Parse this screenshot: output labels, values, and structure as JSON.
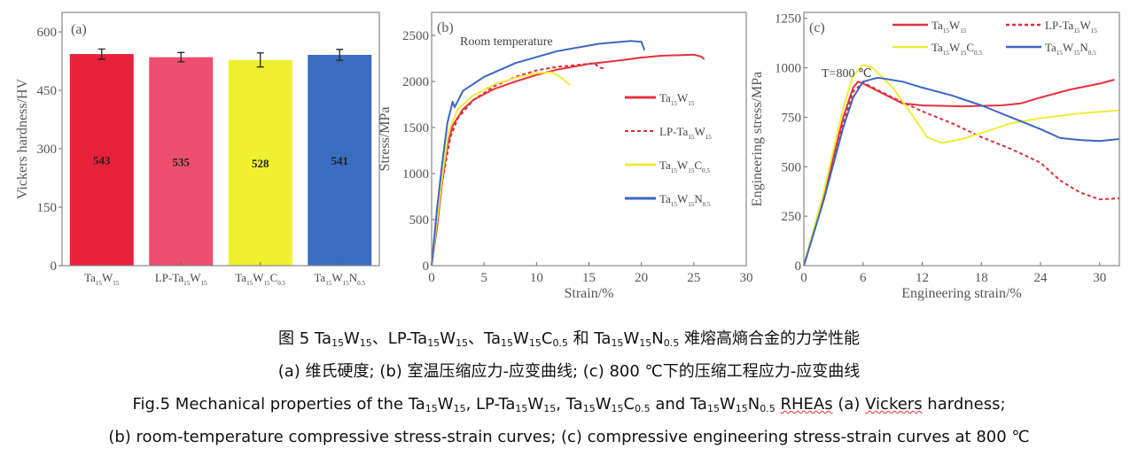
{
  "chart_data": [
    {
      "type": "bar",
      "panel_label": "(a)",
      "ylabel": "Vickers hardness/HV",
      "ylim": [
        0,
        650
      ],
      "yticks": [
        0,
        150,
        300,
        450,
        600
      ],
      "categories": [
        [
          "Ta",
          {
            "sub": "15"
          },
          "W",
          {
            "sub": "15"
          }
        ],
        [
          "LP-Ta",
          {
            "sub": "15"
          },
          "W",
          {
            "sub": "15"
          }
        ],
        [
          "Ta",
          {
            "sub": "15"
          },
          "W",
          {
            "sub": "15"
          },
          "C",
          {
            "sub": "0.5"
          }
        ],
        [
          "Ta",
          {
            "sub": "15"
          },
          "W",
          {
            "sub": "15"
          },
          "N",
          {
            "sub": "0.5"
          }
        ]
      ],
      "values": [
        543,
        535,
        528,
        541
      ],
      "value_labels": [
        "543",
        "535",
        "528",
        "541"
      ],
      "errors": [
        13,
        12,
        18,
        14
      ],
      "colors": [
        "#e8203a",
        "#ee4f6e",
        "#eef030",
        "#3a6cc0"
      ]
    },
    {
      "type": "line",
      "panel_label": "(b)",
      "annotation": "Room temperature",
      "xlabel": "Strain/%",
      "ylabel": "Stress/MPa",
      "xlim": [
        0,
        30
      ],
      "ylim": [
        0,
        2750
      ],
      "xticks": [
        0,
        5,
        10,
        15,
        20,
        25,
        30
      ],
      "yticks": [
        0,
        500,
        1000,
        1500,
        2000,
        2500
      ],
      "legend_position": "right",
      "series": [
        {
          "name": [
            "Ta",
            {
              "sub": "15"
            },
            "W",
            {
              "sub": "15"
            }
          ],
          "color": "#e8303f",
          "dash": false,
          "points": [
            [
              0,
              0
            ],
            [
              0.5,
              400
            ],
            [
              1,
              900
            ],
            [
              1.5,
              1300
            ],
            [
              2,
              1520
            ],
            [
              3,
              1700
            ],
            [
              4,
              1800
            ],
            [
              6,
              1920
            ],
            [
              8,
              2000
            ],
            [
              10,
              2070
            ],
            [
              12,
              2130
            ],
            [
              15,
              2190
            ],
            [
              18,
              2230
            ],
            [
              20,
              2260
            ],
            [
              22,
              2280
            ],
            [
              25,
              2290
            ],
            [
              25.7,
              2270
            ],
            [
              26,
              2240
            ]
          ]
        },
        {
          "name": [
            "LP-Ta",
            {
              "sub": "15"
            },
            "W",
            {
              "sub": "15"
            }
          ],
          "color": "#d9303a",
          "dash": true,
          "points": [
            [
              0,
              0
            ],
            [
              1,
              900
            ],
            [
              1.8,
              1400
            ],
            [
              2.5,
              1600
            ],
            [
              4,
              1800
            ],
            [
              6,
              1950
            ],
            [
              8,
              2050
            ],
            [
              10,
              2120
            ],
            [
              12,
              2160
            ],
            [
              14,
              2180
            ],
            [
              15.5,
              2200
            ],
            [
              16,
              2150
            ],
            [
              16.5,
              2140
            ]
          ]
        },
        {
          "name": [
            "Ta",
            {
              "sub": "15"
            },
            "W",
            {
              "sub": "15"
            },
            "C",
            {
              "sub": "0.5"
            }
          ],
          "color": "#ecec3a",
          "dash": false,
          "points": [
            [
              0,
              0
            ],
            [
              1,
              950
            ],
            [
              1.6,
              1450
            ],
            [
              2.5,
              1700
            ],
            [
              4,
              1850
            ],
            [
              6,
              1970
            ],
            [
              8,
              2040
            ],
            [
              10,
              2090
            ],
            [
              11.5,
              2100
            ],
            [
              12.5,
              2030
            ],
            [
              13.2,
              1960
            ]
          ]
        },
        {
          "name": [
            "Ta",
            {
              "sub": "15"
            },
            "W",
            {
              "sub": "15"
            },
            "N",
            {
              "sub": "0.5"
            }
          ],
          "color": "#3b66c4",
          "dash": false,
          "points": [
            [
              0,
              0
            ],
            [
              0.5,
              600
            ],
            [
              1,
              1100
            ],
            [
              1.5,
              1550
            ],
            [
              2,
              1780
            ],
            [
              2.2,
              1720
            ],
            [
              3,
              1900
            ],
            [
              5,
              2050
            ],
            [
              8,
              2200
            ],
            [
              12,
              2330
            ],
            [
              16,
              2410
            ],
            [
              19,
              2440
            ],
            [
              20,
              2430
            ],
            [
              20.3,
              2340
            ]
          ]
        }
      ]
    },
    {
      "type": "line",
      "panel_label": "(c)",
      "annotation": "T=800 ℃",
      "xlabel": "Engineering strain/%",
      "ylabel": "Engineering stress/MPa",
      "xlim": [
        0,
        32
      ],
      "ylim": [
        0,
        1280
      ],
      "xticks": [
        0,
        6,
        12,
        18,
        24,
        30
      ],
      "yticks": [
        0,
        250,
        500,
        750,
        1000,
        1250
      ],
      "legend_position": "top",
      "series": [
        {
          "name": [
            "Ta",
            {
              "sub": "15"
            },
            "W",
            {
              "sub": "15"
            }
          ],
          "color": "#e8303f",
          "dash": false,
          "points": [
            [
              0,
              0
            ],
            [
              2,
              350
            ],
            [
              4,
              750
            ],
            [
              5,
              900
            ],
            [
              5.5,
              930
            ],
            [
              6,
              920
            ],
            [
              8,
              870
            ],
            [
              10,
              820
            ],
            [
              12,
              810
            ],
            [
              16,
              805
            ],
            [
              20,
              810
            ],
            [
              22,
              820
            ],
            [
              24,
              850
            ],
            [
              27,
              890
            ],
            [
              30,
              920
            ],
            [
              31.5,
              940
            ]
          ]
        },
        {
          "name": [
            "LP-Ta",
            {
              "sub": "15"
            },
            "W",
            {
              "sub": "15"
            }
          ],
          "color": "#d9303a",
          "dash": true,
          "points": [
            [
              0,
              0
            ],
            [
              2,
              330
            ],
            [
              4,
              720
            ],
            [
              5,
              880
            ],
            [
              6,
              925
            ],
            [
              7,
              900
            ],
            [
              9,
              850
            ],
            [
              12,
              780
            ],
            [
              15,
              720
            ],
            [
              18,
              650
            ],
            [
              21,
              590
            ],
            [
              24,
              520
            ],
            [
              26,
              430
            ],
            [
              28,
              370
            ],
            [
              30,
              335
            ],
            [
              32,
              340
            ]
          ]
        },
        {
          "name": [
            "Ta",
            {
              "sub": "15"
            },
            "W",
            {
              "sub": "15"
            },
            "C",
            {
              "sub": "0.5"
            }
          ],
          "color": "#ecec3a",
          "dash": false,
          "points": [
            [
              0,
              0
            ],
            [
              2,
              370
            ],
            [
              4,
              800
            ],
            [
              5,
              960
            ],
            [
              6,
              1015
            ],
            [
              7,
              1000
            ],
            [
              9,
              900
            ],
            [
              11,
              760
            ],
            [
              12.5,
              650
            ],
            [
              14,
              620
            ],
            [
              16,
              640
            ],
            [
              18,
              670
            ],
            [
              21,
              720
            ],
            [
              24,
              745
            ],
            [
              28,
              770
            ],
            [
              32,
              785
            ]
          ]
        },
        {
          "name": [
            "Ta",
            {
              "sub": "15"
            },
            "W",
            {
              "sub": "15"
            },
            "N",
            {
              "sub": "0.5"
            }
          ],
          "color": "#3b66c4",
          "dash": false,
          "points": [
            [
              0,
              0
            ],
            [
              2,
              330
            ],
            [
              4,
              700
            ],
            [
              5,
              850
            ],
            [
              6,
              930
            ],
            [
              7.5,
              950
            ],
            [
              10,
              930
            ],
            [
              12,
              900
            ],
            [
              15,
              860
            ],
            [
              18,
              810
            ],
            [
              21,
              750
            ],
            [
              24,
              690
            ],
            [
              26,
              645
            ],
            [
              28,
              635
            ],
            [
              30,
              630
            ],
            [
              32,
              640
            ]
          ]
        }
      ]
    }
  ],
  "caption": {
    "lines": [
      [
        "图 5   Ta",
        {
          "sub": "15"
        },
        "W",
        {
          "sub": "15"
        },
        "、LP-Ta",
        {
          "sub": "15"
        },
        "W",
        {
          "sub": "15"
        },
        "、Ta",
        {
          "sub": "15"
        },
        "W",
        {
          "sub": "15"
        },
        "C",
        {
          "sub": "0.5"
        },
        " 和 Ta",
        {
          "sub": "15"
        },
        "W",
        {
          "sub": "15"
        },
        "N",
        {
          "sub": "0.5"
        },
        " 难熔高熵合金的力学性能"
      ],
      [
        "(a) 维氏硬度; (b) 室温压缩应力-应变曲线; (c) 800 ℃下的压缩工程应力-应变曲线"
      ],
      [
        "Fig.5   Mechanical properties of the Ta",
        {
          "sub": "15"
        },
        "W",
        {
          "sub": "15"
        },
        ", LP-Ta",
        {
          "sub": "15"
        },
        "W",
        {
          "sub": "15"
        },
        ", Ta",
        {
          "sub": "15"
        },
        "W",
        {
          "sub": "15"
        },
        "C",
        {
          "sub": "0.5"
        },
        " and Ta",
        {
          "sub": "15"
        },
        "W",
        {
          "sub": "15"
        },
        "N",
        {
          "sub": "0.5"
        },
        " ",
        {
          "wavy": "RHEAs"
        },
        "    (a) ",
        {
          "wavy": "Vickers"
        },
        " hardness;"
      ],
      [
        "(b) room-temperature compressive stress-strain curves; (c) compressive engineering stress-strain curves at 800 ℃"
      ]
    ]
  }
}
